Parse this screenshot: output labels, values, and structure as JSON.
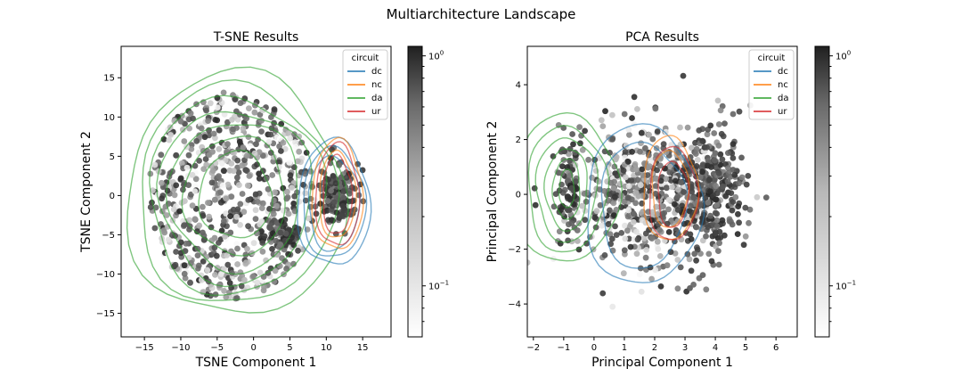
{
  "suptitle": "Multiarchitecture Landscape",
  "legend_title": "circuit",
  "legend_entries": [
    {
      "label": "dc",
      "color": "#1f77b4"
    },
    {
      "label": "nc",
      "color": "#ff7f0e"
    },
    {
      "label": "da",
      "color": "#2ca02c"
    },
    {
      "label": "ur",
      "color": "#d62728"
    }
  ],
  "colorbar": {
    "cmap": "Greys",
    "scale": "log",
    "range": [
      0.06,
      1.1
    ],
    "major_ticks": [
      {
        "value": 1,
        "base": "10",
        "exp": "0"
      },
      {
        "value": 0.1,
        "base": "10",
        "exp": "−1"
      }
    ],
    "minor_ticks": [
      0.2,
      0.3,
      0.4,
      0.5,
      0.6,
      0.7,
      0.8,
      0.9,
      0.07,
      0.08,
      0.09
    ]
  },
  "chart_data": [
    {
      "type": "scatter",
      "title": "T-SNE Results",
      "xlabel": "TSNE Component 1",
      "ylabel": "TSNE Component 2",
      "xlim": [
        -18.2,
        18.9
      ],
      "ylim": [
        -18,
        19
      ],
      "xticks": [
        -15,
        -10,
        -5,
        0,
        5,
        10,
        15
      ],
      "yticks": [
        -15,
        -10,
        -5,
        0,
        5,
        10,
        15
      ],
      "legend": "top-right",
      "overlay": "kde contours per circuit (dc, nc, da, ur)",
      "point_clusters": [
        {
          "center": [
            -3,
            0
          ],
          "spread": [
            10,
            11
          ],
          "count": 700,
          "value_range": [
            0.06,
            1.0
          ]
        },
        {
          "center": [
            11.5,
            0
          ],
          "spread": [
            2.5,
            4.5
          ],
          "count": 150,
          "value_range": [
            0.3,
            1.0
          ]
        },
        {
          "center": [
            4,
            -5
          ],
          "spread": [
            2.5,
            2
          ],
          "count": 80,
          "value_range": [
            0.3,
            1.0
          ]
        }
      ],
      "contours": [
        {
          "circuit": "da",
          "center": [
            -2.5,
            0
          ],
          "radii": [
            [
              15,
              15.5
            ],
            [
              13.5,
              14
            ],
            [
              12,
              12.5
            ],
            [
              10.5,
              11
            ],
            [
              9,
              9.5
            ],
            [
              7,
              7.5
            ],
            [
              5,
              5.5
            ]
          ]
        },
        {
          "circuit": "dc",
          "center": [
            11,
            -1
          ],
          "radii": [
            [
              5,
              8
            ],
            [
              4.3,
              7
            ],
            [
              3.5,
              6
            ]
          ]
        },
        {
          "circuit": "nc",
          "center": [
            11.5,
            0
          ],
          "radii": [
            [
              3.5,
              7
            ],
            [
              2.5,
              5.5
            ]
          ]
        },
        {
          "circuit": "ur",
          "center": [
            11.5,
            0
          ],
          "radii": [
            [
              3,
              6.5
            ],
            [
              2,
              5
            ]
          ]
        }
      ]
    },
    {
      "type": "scatter",
      "title": "PCA Results",
      "xlabel": "Principal Component 1",
      "ylabel": "Principal Component 2",
      "xlim": [
        -2.2,
        6.7
      ],
      "ylim": [
        -5.2,
        5.4
      ],
      "xticks": [
        -2,
        -1,
        0,
        1,
        2,
        3,
        4,
        5,
        6
      ],
      "yticks": [
        -4,
        -2,
        0,
        2,
        4
      ],
      "legend": "top-right",
      "overlay": "kde contours per circuit (dc, nc, da, ur)",
      "point_clusters": [
        {
          "center": [
            1.8,
            0
          ],
          "spread": [
            3,
            3
          ],
          "count": 600,
          "value_range": [
            0.06,
            1.0
          ]
        },
        {
          "center": [
            3.8,
            0.2
          ],
          "spread": [
            1.2,
            2.5
          ],
          "count": 250,
          "value_range": [
            0.3,
            1.0
          ]
        },
        {
          "center": [
            -0.8,
            0.2
          ],
          "spread": [
            0.4,
            1.8
          ],
          "count": 80,
          "value_range": [
            0.2,
            1.0
          ]
        }
      ],
      "contours": [
        {
          "circuit": "da",
          "center": [
            -0.9,
            0.2
          ],
          "radii": [
            [
              1.7,
              2.7
            ],
            [
              1.3,
              2.3
            ],
            [
              1.0,
              1.9
            ],
            [
              0.7,
              1.5
            ],
            [
              0.45,
              1.1
            ],
            [
              0.25,
              0.7
            ]
          ]
        },
        {
          "circuit": "dc",
          "center": [
            1.6,
            -0.4
          ],
          "radii": [
            [
              1.9,
              2.9
            ],
            [
              1.4,
              2.3
            ]
          ]
        },
        {
          "circuit": "nc",
          "center": [
            2.5,
            0.2
          ],
          "radii": [
            [
              0.9,
              1.9
            ],
            [
              0.6,
              1.4
            ]
          ]
        },
        {
          "circuit": "ur",
          "center": [
            2.6,
            0.0
          ],
          "radii": [
            [
              0.8,
              1.7
            ],
            [
              0.5,
              1.2
            ]
          ]
        }
      ]
    }
  ]
}
